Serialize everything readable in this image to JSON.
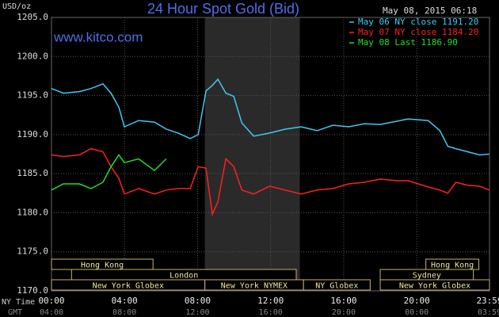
{
  "chart_data": {
    "type": "line",
    "title": "24 Hour Spot Gold (Bid)",
    "y_label": "USD/oz",
    "timestamp": "May 08, 2015 06:18",
    "watermark": "www.kitco.com",
    "x": [
      0,
      0.65,
      1.52,
      2.17,
      2.82,
      3.26,
      3.69,
      3.99,
      4.77,
      5.64,
      6.29,
      6.94,
      7.6,
      8.03,
      8.46,
      8.81,
      9.11,
      9.55,
      9.98,
      10.42,
      11.07,
      11.94,
      12.8,
      13.67,
      14.54,
      15.41,
      16.28,
      17.14,
      18.01,
      18.88,
      19.53,
      20.62,
      21.27,
      21.7,
      22.14,
      22.79,
      23.44,
      23.96
    ],
    "series": [
      {
        "name": "May 06 NY close 1191.20",
        "color": "#3fc8f0",
        "values": [
          1195.9,
          1195.3,
          1195.5,
          1195.9,
          1196.5,
          1195.3,
          1193.5,
          1191.0,
          1191.8,
          1191.6,
          1190.7,
          1190.2,
          1189.5,
          1190.0,
          1195.6,
          1196.3,
          1197.1,
          1195.3,
          1194.9,
          1191.5,
          1189.8,
          1190.2,
          1190.7,
          1191.0,
          1190.5,
          1191.2,
          1191.0,
          1191.4,
          1191.3,
          1191.7,
          1192.0,
          1191.8,
          1190.5,
          1188.5,
          1188.2,
          1187.8,
          1187.4,
          1187.5
        ]
      },
      {
        "name": "May 07 NY close 1184.20",
        "color": "#ff2020",
        "values": [
          1187.4,
          1187.2,
          1187.4,
          1188.2,
          1187.8,
          1185.9,
          1184.4,
          1182.4,
          1183.1,
          1182.4,
          1182.9,
          1183.1,
          1183.1,
          1185.9,
          1185.7,
          1179.8,
          1181.4,
          1186.9,
          1185.9,
          1182.9,
          1182.4,
          1183.4,
          1182.9,
          1182.4,
          1182.9,
          1183.1,
          1183.7,
          1183.9,
          1184.3,
          1184.1,
          1184.1,
          1183.3,
          1182.9,
          1182.5,
          1183.9,
          1183.5,
          1183.4,
          1182.9
        ]
      },
      {
        "name": "May 08 Last 1186.90",
        "color": "#20e020",
        "values": [
          1182.9,
          1183.7,
          1183.7,
          1183.1,
          1183.9,
          1185.9,
          1187.4,
          1186.4,
          1186.9,
          1185.4,
          1186.9,
          null,
          null,
          null,
          null,
          null,
          null,
          null,
          null,
          null,
          null,
          null,
          null,
          null,
          null,
          null,
          null,
          null,
          null,
          null,
          null,
          null,
          null,
          null,
          null,
          null,
          null,
          null
        ]
      }
    ],
    "xlim": [
      0,
      23.983
    ],
    "xticks": [
      {
        "value": 0,
        "label": "00:00"
      },
      {
        "value": 4,
        "label": "04:00"
      },
      {
        "value": 8,
        "label": "08:00"
      },
      {
        "value": 12,
        "label": "12:00"
      },
      {
        "value": 16,
        "label": "16:00"
      },
      {
        "value": 20,
        "label": "20:00"
      },
      {
        "value": 23.983,
        "label": "23:59"
      }
    ],
    "x_label": "NY Time",
    "x2_label": "GMT",
    "x2ticks": [
      "04:00",
      "08:00",
      "12:00",
      "16:00",
      "20:00",
      "00:00",
      "03:59"
    ],
    "ylim": [
      1170,
      1205
    ],
    "yticks": [
      {
        "value": 1170,
        "label": "1170.0"
      },
      {
        "value": 1175,
        "label": "1175.0"
      },
      {
        "value": 1180,
        "label": "1180.0"
      },
      {
        "value": 1185,
        "label": "1185.0"
      },
      {
        "value": 1190,
        "label": "1190.0"
      },
      {
        "value": 1195,
        "label": "1195.0"
      },
      {
        "value": 1200,
        "label": "1200.0"
      },
      {
        "value": 1205,
        "label": "1205.0"
      }
    ],
    "grid": true,
    "shaded_region": [
      8.4,
      13.6
    ],
    "session_rows": [
      [
        {
          "label": "Hong Kong",
          "start": 0,
          "end": 5.56
        },
        {
          "label": "Hong Kong",
          "start": 20.5,
          "end": 23.4
        }
      ],
      [
        {
          "label": "London",
          "start": 1.1,
          "end": 13.4
        },
        {
          "label": "Sydney",
          "start": 18.0,
          "end": 23.1
        }
      ],
      [
        {
          "label": "New York Globex",
          "start": 0,
          "end": 8.4
        },
        {
          "label": "New York NYMEX",
          "start": 8.4,
          "end": 13.8
        },
        {
          "label": "NY Globex",
          "start": 13.8,
          "end": 17.45
        },
        {
          "label": "New York Globex",
          "start": 18.0,
          "end": 23.983
        }
      ]
    ]
  }
}
